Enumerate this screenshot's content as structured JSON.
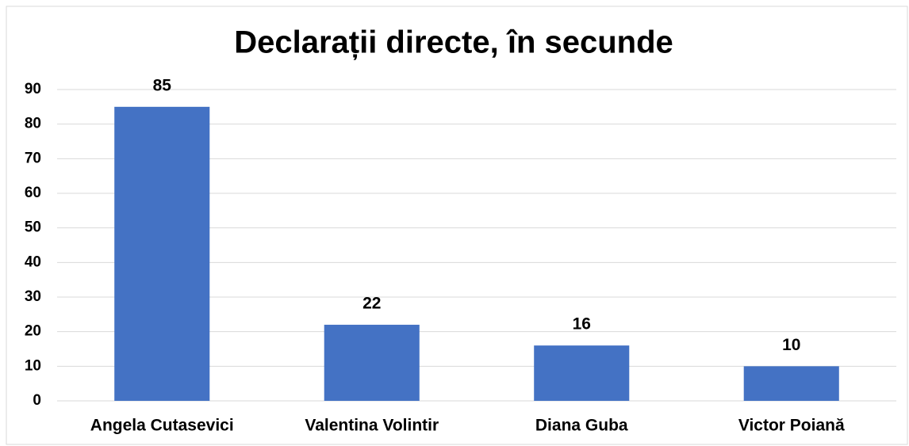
{
  "chart_data": {
    "type": "bar",
    "title": "Declarații directe, în secunde",
    "categories": [
      "Angela Cutasevici",
      "Valentina Volintir",
      "Diana Guba",
      "Victor Poiană"
    ],
    "values": [
      85,
      22,
      16,
      10
    ],
    "color": "#4472c4",
    "ylim": [
      0,
      90
    ],
    "yticks": [
      0,
      10,
      20,
      30,
      40,
      50,
      60,
      70,
      80,
      90
    ],
    "grid": true
  }
}
